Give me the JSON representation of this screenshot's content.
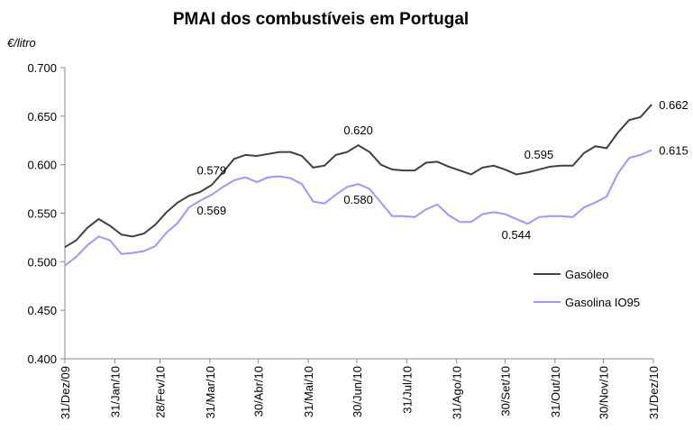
{
  "chart_data": {
    "type": "line",
    "title": "PMAI dos combustíveis em Portugal",
    "y_label": "€/litro",
    "x": [
      0,
      7,
      14,
      21,
      28,
      35,
      42,
      49,
      56,
      63,
      70,
      77,
      84,
      91,
      98,
      105,
      112,
      119,
      126,
      133,
      140,
      147,
      154,
      161,
      168,
      175,
      182,
      189,
      196,
      203,
      210,
      217,
      224,
      231,
      238,
      245,
      252,
      259,
      266,
      273,
      280,
      287,
      294,
      301,
      308,
      315,
      322,
      329,
      336,
      343,
      350,
      357,
      364
    ],
    "series": [
      {
        "name": "Gasóleo",
        "color": "#404040",
        "values": [
          0.515,
          0.522,
          0.535,
          0.544,
          0.537,
          0.528,
          0.526,
          0.529,
          0.538,
          0.551,
          0.561,
          0.568,
          0.572,
          0.579,
          0.592,
          0.606,
          0.61,
          0.609,
          0.611,
          0.613,
          0.613,
          0.609,
          0.597,
          0.599,
          0.61,
          0.613,
          0.62,
          0.613,
          0.6,
          0.595,
          0.594,
          0.594,
          0.602,
          0.603,
          0.598,
          0.594,
          0.59,
          0.597,
          0.599,
          0.595,
          0.59,
          0.592,
          0.595,
          0.598,
          0.599,
          0.599,
          0.612,
          0.619,
          0.617,
          0.633,
          0.646,
          0.649,
          0.662
        ],
        "value_labels": [
          null,
          null,
          null,
          null,
          null,
          null,
          null,
          null,
          null,
          null,
          null,
          null,
          null,
          "0.579",
          null,
          null,
          null,
          null,
          null,
          null,
          null,
          null,
          null,
          null,
          null,
          null,
          "0.620",
          null,
          null,
          null,
          null,
          null,
          null,
          null,
          null,
          null,
          null,
          null,
          null,
          null,
          null,
          null,
          "0.595",
          null,
          null,
          null,
          null,
          null,
          null,
          null,
          null,
          null,
          "0.662"
        ]
      },
      {
        "name": "Gasolina IO95",
        "color": "#9999ff",
        "values": [
          0.496,
          0.505,
          0.517,
          0.526,
          0.522,
          0.508,
          0.509,
          0.511,
          0.516,
          0.53,
          0.54,
          0.556,
          0.563,
          0.569,
          0.577,
          0.584,
          0.587,
          0.582,
          0.587,
          0.588,
          0.586,
          0.58,
          0.562,
          0.56,
          0.569,
          0.577,
          0.58,
          0.575,
          0.561,
          0.547,
          0.547,
          0.546,
          0.554,
          0.559,
          0.548,
          0.541,
          0.541,
          0.549,
          0.551,
          0.549,
          0.544,
          0.539,
          0.546,
          0.547,
          0.547,
          0.546,
          0.556,
          0.561,
          0.567,
          0.591,
          0.607,
          0.61,
          0.615
        ],
        "value_labels": [
          null,
          null,
          null,
          null,
          null,
          null,
          null,
          null,
          null,
          null,
          null,
          null,
          null,
          "0.569",
          null,
          null,
          null,
          null,
          null,
          null,
          null,
          null,
          null,
          null,
          null,
          null,
          "0.580",
          null,
          null,
          null,
          null,
          null,
          null,
          null,
          null,
          null,
          null,
          null,
          null,
          null,
          "0.544",
          null,
          null,
          null,
          null,
          null,
          null,
          null,
          null,
          null,
          null,
          null,
          "0.615"
        ]
      }
    ],
    "xlim": [
      0,
      365
    ],
    "xticks": [
      {
        "value": 0,
        "label": "31/Dez/09"
      },
      {
        "value": 31,
        "label": "31/Jan/10"
      },
      {
        "value": 59,
        "label": "28/Fev/10"
      },
      {
        "value": 90,
        "label": "31/Mar/10"
      },
      {
        "value": 120,
        "label": "30/Abr/10"
      },
      {
        "value": 151,
        "label": "31/Mai/10"
      },
      {
        "value": 181,
        "label": "30/Jun/10"
      },
      {
        "value": 212,
        "label": "31/Jul/10"
      },
      {
        "value": 243,
        "label": "31/Ago/10"
      },
      {
        "value": 273,
        "label": "30/Set/10"
      },
      {
        "value": 304,
        "label": "31/Out/10"
      },
      {
        "value": 334,
        "label": "30/Nov/10"
      },
      {
        "value": 365,
        "label": "31/Dez/10"
      }
    ],
    "ylim": [
      0.4,
      0.7
    ],
    "yticks": [
      {
        "value": 0.4,
        "label": "0.400"
      },
      {
        "value": 0.45,
        "label": "0.450"
      },
      {
        "value": 0.5,
        "label": "0.500"
      },
      {
        "value": 0.55,
        "label": "0.550"
      },
      {
        "value": 0.6,
        "label": "0.600"
      },
      {
        "value": 0.65,
        "label": "0.650"
      },
      {
        "value": 0.7,
        "label": "0.700"
      }
    ],
    "grid": false,
    "legend": "right"
  }
}
